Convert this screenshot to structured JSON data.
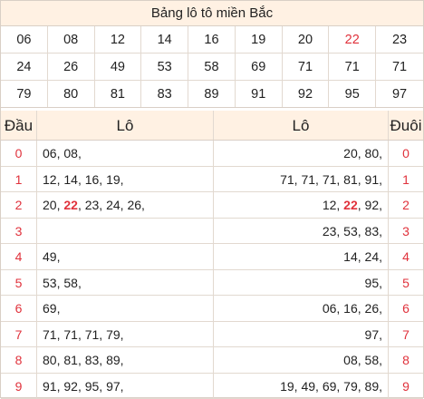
{
  "title": "Bảng lô tô miền Bắc",
  "numbers": [
    [
      "06",
      "08",
      "12",
      "14",
      "16",
      "19",
      "20",
      "22",
      "23"
    ],
    [
      "24",
      "26",
      "49",
      "53",
      "58",
      "69",
      "71",
      "71",
      "71"
    ],
    [
      "79",
      "80",
      "81",
      "83",
      "89",
      "91",
      "92",
      "95",
      "97"
    ]
  ],
  "highlight_number": "22",
  "header": {
    "dau": "Đầu",
    "lo_left": "Lô",
    "lo_right": "Lô",
    "duoi": "Đuôi"
  },
  "rows": [
    {
      "digit": "0",
      "left": [
        "06",
        "08"
      ],
      "right": [
        "20",
        "80"
      ]
    },
    {
      "digit": "1",
      "left": [
        "12",
        "14",
        "16",
        "19"
      ],
      "right": [
        "71",
        "71",
        "71",
        "81",
        "91"
      ]
    },
    {
      "digit": "2",
      "left": [
        "20",
        "22",
        "23",
        "24",
        "26"
      ],
      "right": [
        "12",
        "22",
        "92"
      ]
    },
    {
      "digit": "3",
      "left": [],
      "right": [
        "23",
        "53",
        "83"
      ]
    },
    {
      "digit": "4",
      "left": [
        "49"
      ],
      "right": [
        "14",
        "24"
      ]
    },
    {
      "digit": "5",
      "left": [
        "53",
        "58"
      ],
      "right": [
        "95"
      ]
    },
    {
      "digit": "6",
      "left": [
        "69"
      ],
      "right": [
        "06",
        "16",
        "26"
      ]
    },
    {
      "digit": "7",
      "left": [
        "71",
        "71",
        "71",
        "79"
      ],
      "right": [
        "97"
      ]
    },
    {
      "digit": "8",
      "left": [
        "80",
        "81",
        "83",
        "89"
      ],
      "right": [
        "08",
        "58"
      ]
    },
    {
      "digit": "9",
      "left": [
        "91",
        "92",
        "95",
        "97"
      ],
      "right": [
        "19",
        "49",
        "69",
        "79",
        "89"
      ]
    }
  ],
  "colors": {
    "accent_red": "#e0323c",
    "header_bg": "#fff1e3",
    "border": "#d9cfc6"
  }
}
